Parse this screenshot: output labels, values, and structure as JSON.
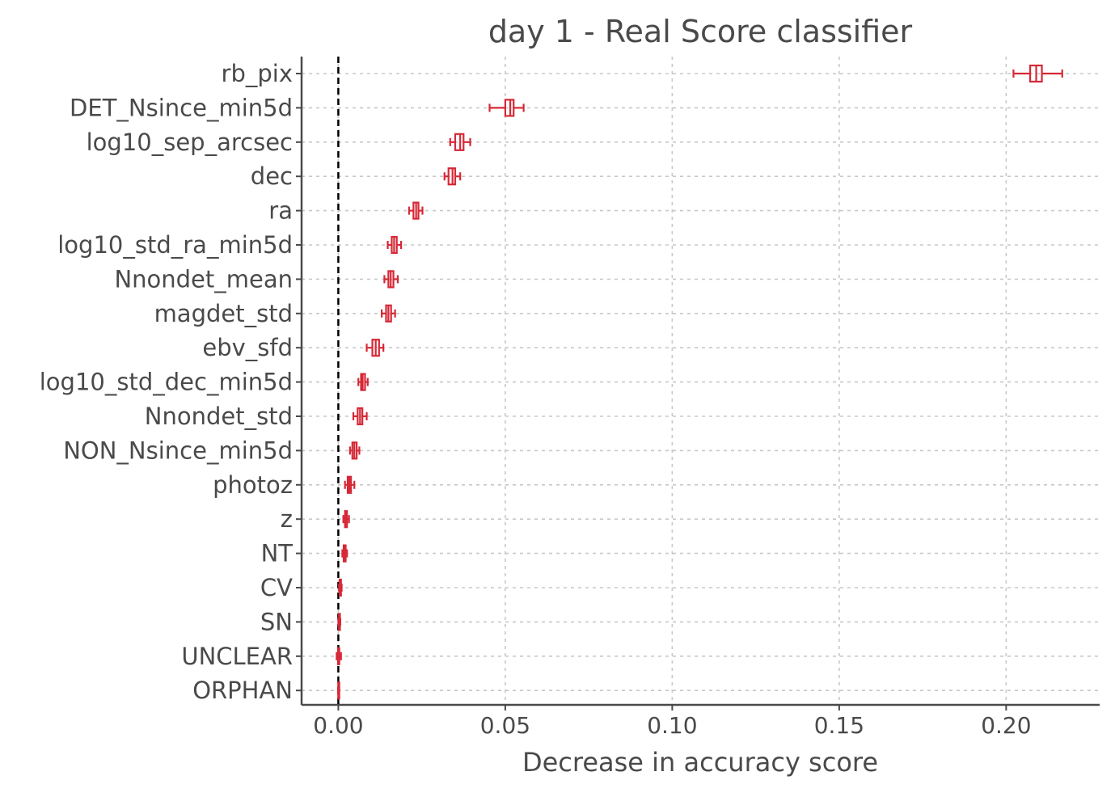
{
  "chart_data": {
    "type": "boxplot",
    "orientation": "horizontal",
    "title": "day 1 - Real Score classifier",
    "xlabel": "Decrease in accuracy score",
    "ylabel": "",
    "xlim": [
      -0.011,
      0.228
    ],
    "xticks": [
      0.0,
      0.05,
      0.1,
      0.15,
      0.2
    ],
    "xtick_labels": [
      "0.00",
      "0.05",
      "0.10",
      "0.15",
      "0.20"
    ],
    "reference_line": {
      "x": 0.0,
      "style": "dashed",
      "color": "#000000"
    },
    "grid": true,
    "box_color": "#d62836",
    "axis_color": "#4a4a4a",
    "categories": [
      "rb_pix",
      "DET_Nsince_min5d",
      "log10_sep_arcsec",
      "dec",
      "ra",
      "log10_std_ra_min5d",
      "Nnondet_mean",
      "magdet_std",
      "ebv_sfd",
      "log10_std_dec_min5d",
      "Nnondet_std",
      "NON_Nsince_min5d",
      "photoz",
      "z",
      "NT",
      "CV",
      "SN",
      "UNCLEAR",
      "ORPHAN"
    ],
    "boxes": [
      {
        "feature": "rb_pix",
        "whisker_low": 0.2022,
        "q1": 0.2072,
        "median": 0.209,
        "q3": 0.2107,
        "whisker_high": 0.2168
      },
      {
        "feature": "DET_Nsince_min5d",
        "whisker_low": 0.0453,
        "q1": 0.05,
        "median": 0.0515,
        "q3": 0.0525,
        "whisker_high": 0.0555
      },
      {
        "feature": "log10_sep_arcsec",
        "whisker_low": 0.0335,
        "q1": 0.035,
        "median": 0.0365,
        "q3": 0.0375,
        "whisker_high": 0.0395
      },
      {
        "feature": "dec",
        "whisker_low": 0.0318,
        "q1": 0.033,
        "median": 0.0342,
        "q3": 0.035,
        "whisker_high": 0.0365
      },
      {
        "feature": "ra",
        "whisker_low": 0.0212,
        "q1": 0.0225,
        "median": 0.0233,
        "q3": 0.024,
        "whisker_high": 0.0252
      },
      {
        "feature": "log10_std_ra_min5d",
        "whisker_low": 0.0148,
        "q1": 0.016,
        "median": 0.0167,
        "q3": 0.0175,
        "whisker_high": 0.0188
      },
      {
        "feature": "Nnondet_mean",
        "whisker_low": 0.0138,
        "q1": 0.015,
        "median": 0.0157,
        "q3": 0.0165,
        "whisker_high": 0.0178
      },
      {
        "feature": "magdet_std",
        "whisker_low": 0.013,
        "q1": 0.0143,
        "median": 0.015,
        "q3": 0.0158,
        "whisker_high": 0.017
      },
      {
        "feature": "ebv_sfd",
        "whisker_low": 0.0085,
        "q1": 0.0102,
        "median": 0.0112,
        "q3": 0.0122,
        "whisker_high": 0.0135
      },
      {
        "feature": "log10_std_dec_min5d",
        "whisker_low": 0.006,
        "q1": 0.0068,
        "median": 0.0073,
        "q3": 0.008,
        "whisker_high": 0.0088
      },
      {
        "feature": "Nnondet_std",
        "whisker_low": 0.0045,
        "q1": 0.0058,
        "median": 0.0065,
        "q3": 0.0072,
        "whisker_high": 0.0085
      },
      {
        "feature": "NON_Nsince_min5d",
        "whisker_low": 0.0035,
        "q1": 0.0042,
        "median": 0.0048,
        "q3": 0.0055,
        "whisker_high": 0.0063
      },
      {
        "feature": "photoz",
        "whisker_low": 0.002,
        "q1": 0.0028,
        "median": 0.0033,
        "q3": 0.0038,
        "whisker_high": 0.0048
      },
      {
        "feature": "z",
        "whisker_low": 0.0015,
        "q1": 0.002,
        "median": 0.0023,
        "q3": 0.0026,
        "whisker_high": 0.0032
      },
      {
        "feature": "NT",
        "whisker_low": 0.0012,
        "q1": 0.0016,
        "median": 0.0019,
        "q3": 0.0022,
        "whisker_high": 0.0026
      },
      {
        "feature": "CV",
        "whisker_low": 0.0002,
        "q1": 0.0004,
        "median": 0.0006,
        "q3": 0.0008,
        "whisker_high": 0.001
      },
      {
        "feature": "SN",
        "whisker_low": 0.0,
        "q1": 0.0002,
        "median": 0.0003,
        "q3": 0.0004,
        "whisker_high": 0.0006
      },
      {
        "feature": "UNCLEAR",
        "whisker_low": -0.0005,
        "q1": -0.0001,
        "median": 0.0001,
        "q3": 0.0003,
        "whisker_high": 0.0008
      },
      {
        "feature": "ORPHAN",
        "whisker_low": 0.0,
        "q1": 0.0,
        "median": 0.0,
        "q3": 0.0,
        "whisker_high": 0.0
      }
    ]
  }
}
